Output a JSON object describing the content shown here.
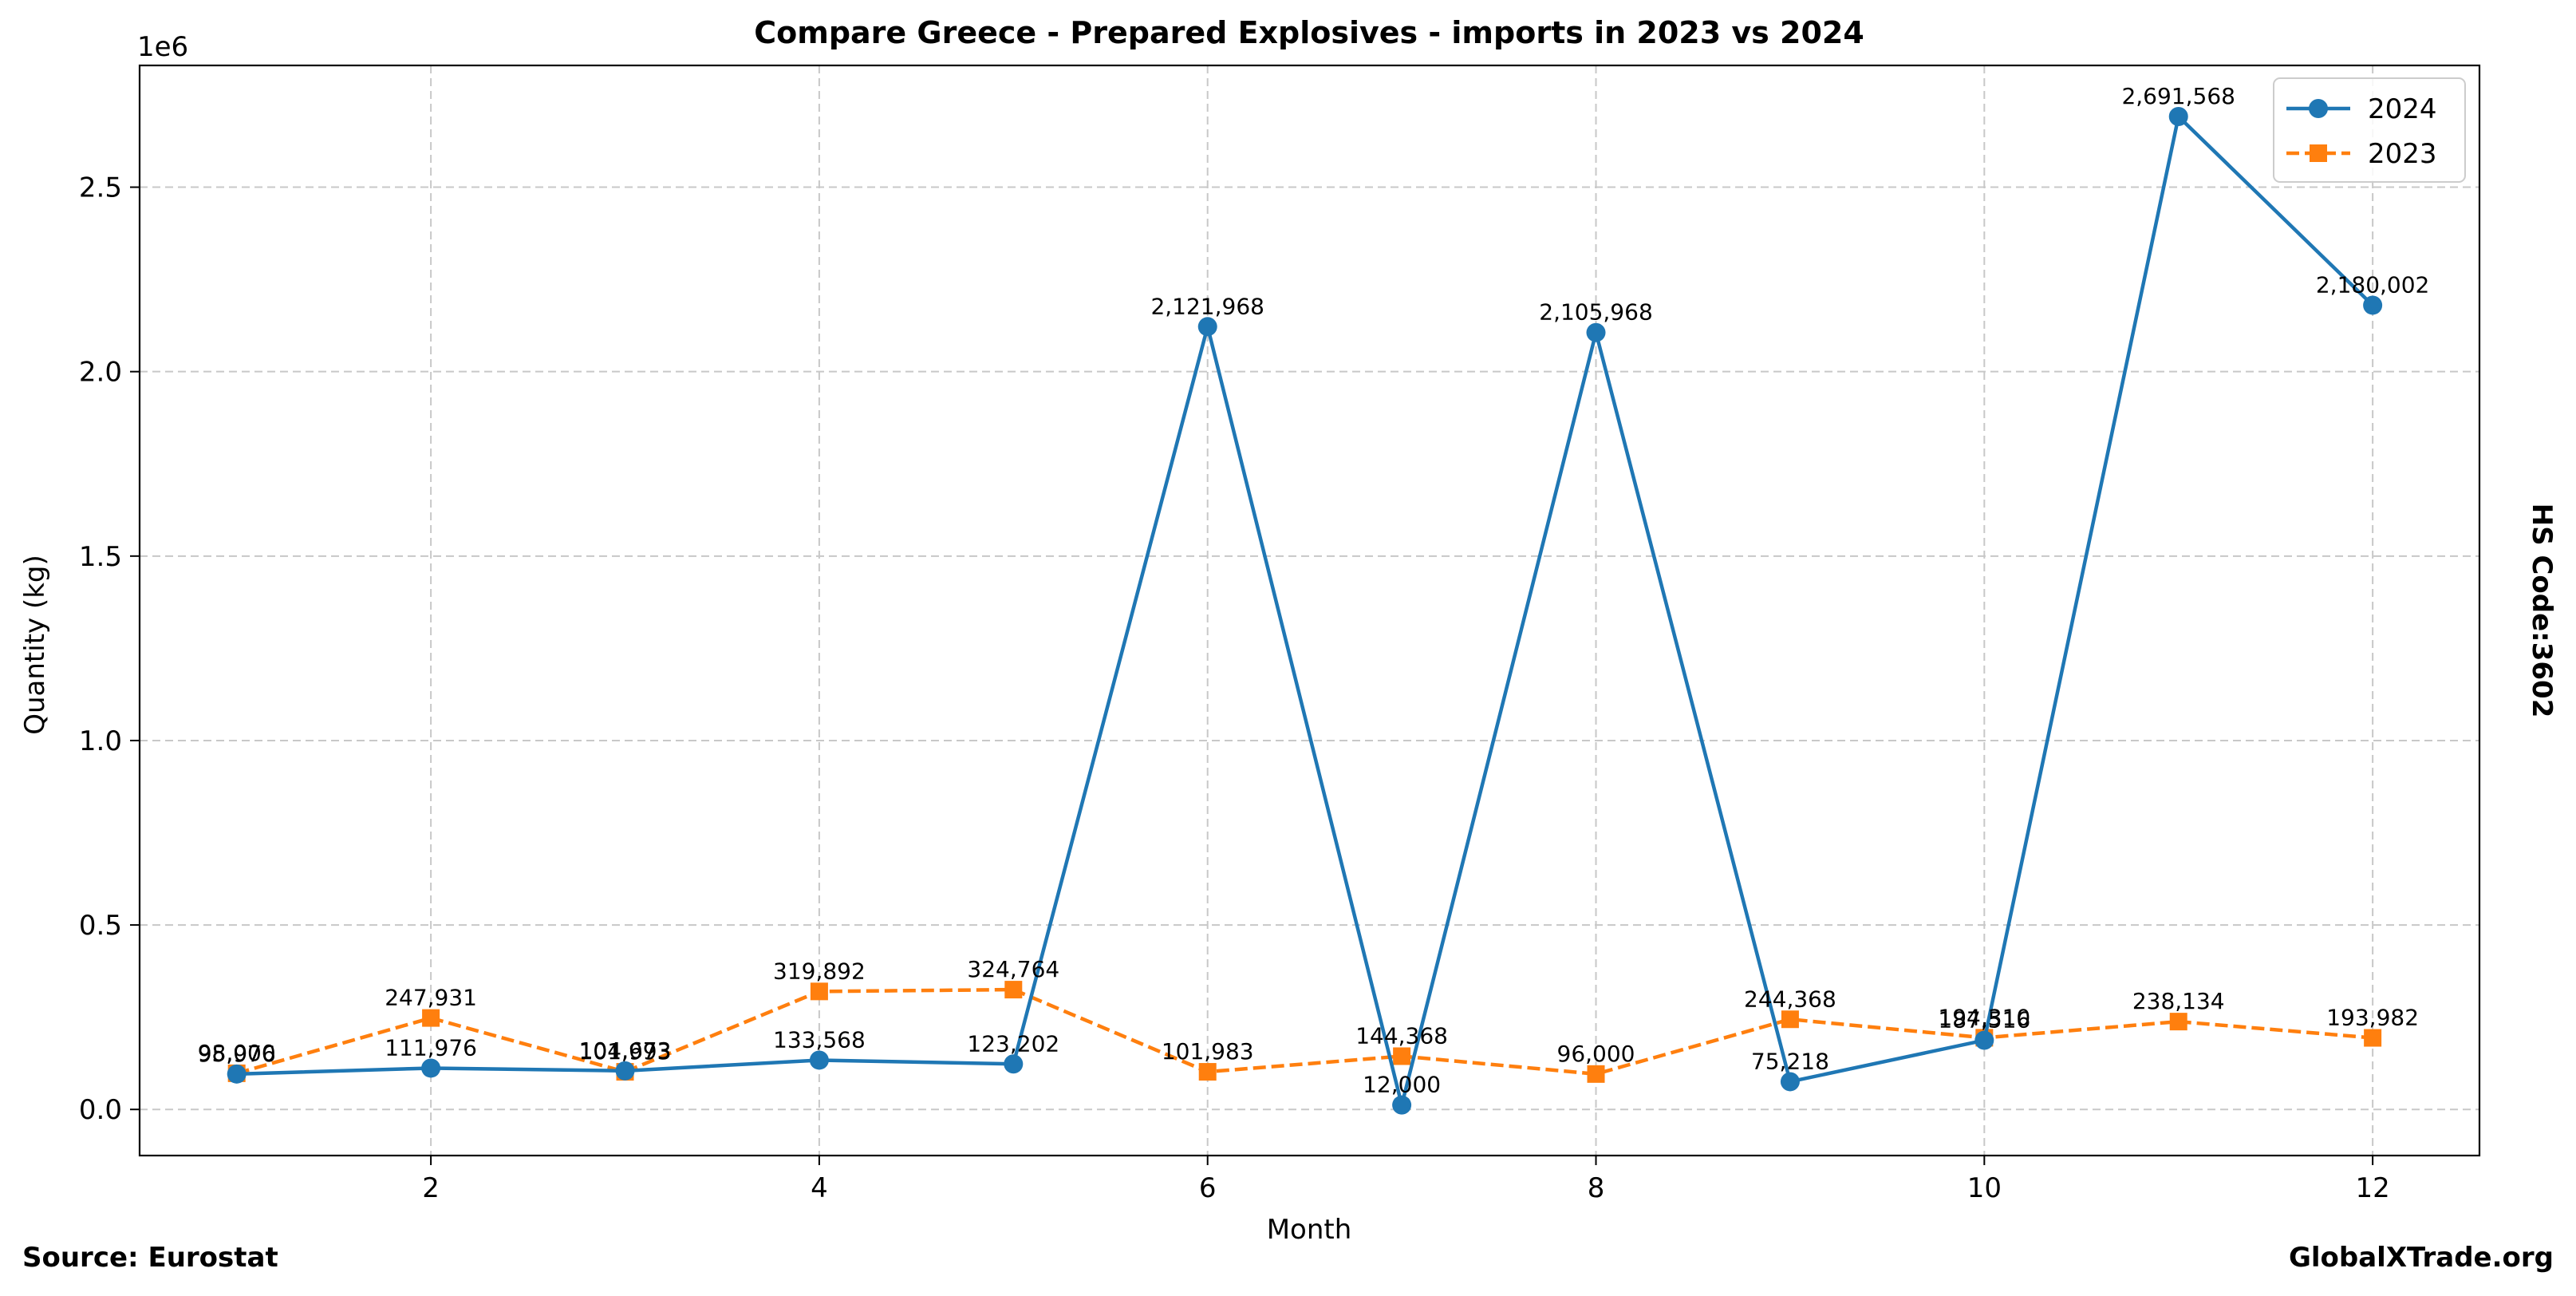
{
  "chart_data": {
    "type": "line",
    "title": "Compare Greece - Prepared Explosives - imports in 2023 vs 2024",
    "xlabel": "Month",
    "ylabel": "Quantity (kg)",
    "y_scale_label": "1e6",
    "side_label": "HS Code:3602",
    "xlim": [
      0.5,
      12.55
    ],
    "ylim": [
      -0.125,
      2.83
    ],
    "x_ticks": [
      2,
      4,
      6,
      8,
      10,
      12
    ],
    "x_tick_labels": [
      "2",
      "4",
      "6",
      "8",
      "10",
      "12"
    ],
    "y_ticks": [
      0.0,
      0.5,
      1.0,
      1.5,
      2.0,
      2.5
    ],
    "y_tick_labels": [
      "0.0",
      "0.5",
      "1.0",
      "1.5",
      "2.0",
      "2.5"
    ],
    "grid": true,
    "legend_position": "top-right",
    "x": [
      1,
      2,
      3,
      4,
      5,
      6,
      7,
      8,
      9,
      10,
      11,
      12
    ],
    "series": [
      {
        "name": "2024",
        "color": "#1f77b4",
        "marker": "circle",
        "linestyle": "solid",
        "values": [
          95976,
          111976,
          104673,
          133568,
          123202,
          2121968,
          12000,
          2105968,
          75218,
          187516,
          2691568,
          2180002
        ],
        "labels": [
          "95,976",
          "111,976",
          "104,673",
          "133,568",
          "123,202",
          "2,121,968",
          "12,000",
          "2,105,968",
          "75,218",
          "187,516",
          "2,691,568",
          "2,180,002"
        ]
      },
      {
        "name": "2023",
        "color": "#ff7f0e",
        "marker": "square",
        "linestyle": "dashed",
        "values": [
          98000,
          247931,
          101993,
          319892,
          324764,
          101983,
          144368,
          96000,
          244368,
          194310,
          238134,
          193982
        ],
        "labels": [
          "98,000",
          "247,931",
          "101,993",
          "319,892",
          "324,764",
          "101,983",
          "144,368",
          "96,000",
          "244,368",
          "194,310",
          "238,134",
          "193,982"
        ]
      }
    ]
  },
  "footer": {
    "source": "Source: Eurostat",
    "brand": "GlobalXTrade.org"
  }
}
